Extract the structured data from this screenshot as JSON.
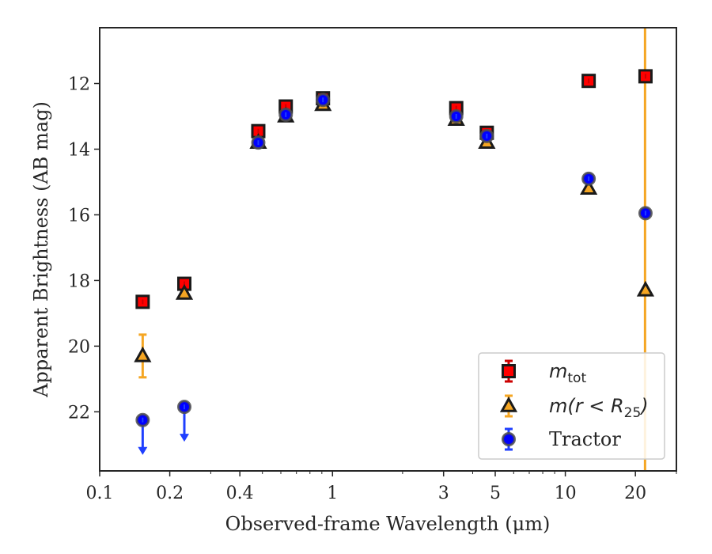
{
  "chart_data": {
    "type": "scatter",
    "xlabel": "Observed-frame Wavelength (μm)",
    "ylabel": "Apparent Brightness (AB mag)",
    "xscale": "log",
    "xlim": [
      0.1,
      30
    ],
    "ylim": [
      23.8,
      10.3
    ],
    "y_inverted": true,
    "x_ticks": [
      {
        "value": 0.1,
        "label": "0.1"
      },
      {
        "value": 0.2,
        "label": "0.2"
      },
      {
        "value": 0.4,
        "label": "0.4"
      },
      {
        "value": 1,
        "label": "1"
      },
      {
        "value": 3,
        "label": "3"
      },
      {
        "value": 5,
        "label": "5"
      },
      {
        "value": 10,
        "label": "10"
      },
      {
        "value": 20,
        "label": "20"
      }
    ],
    "y_ticks": [
      {
        "value": 12,
        "label": "12"
      },
      {
        "value": 14,
        "label": "14"
      },
      {
        "value": 16,
        "label": "16"
      },
      {
        "value": 18,
        "label": "18"
      },
      {
        "value": 20,
        "label": "20"
      },
      {
        "value": 22,
        "label": "22"
      }
    ],
    "vertical_line": {
      "x": 22.0,
      "color": "#f5a623"
    },
    "legend_position": "lower-right",
    "series": [
      {
        "name": "m_tot",
        "legend_main": "m",
        "legend_sub": "tot",
        "marker": "square",
        "fill": "#ff0000",
        "edge": "#1a1a1a",
        "errcolor": "#cc0000",
        "points": [
          {
            "x": 0.153,
            "y": 18.65
          },
          {
            "x": 0.231,
            "y": 18.1
          },
          {
            "x": 0.48,
            "y": 13.45
          },
          {
            "x": 0.63,
            "y": 12.7
          },
          {
            "x": 0.91,
            "y": 12.45
          },
          {
            "x": 3.4,
            "y": 12.75
          },
          {
            "x": 4.6,
            "y": 13.5
          },
          {
            "x": 12.6,
            "y": 11.92
          },
          {
            "x": 22.1,
            "y": 11.78
          }
        ]
      },
      {
        "name": "m(r < R_25)",
        "legend_main": "m(r < R",
        "legend_sub": "25",
        "legend_end": ")",
        "marker": "triangle",
        "fill": "#f5a623",
        "edge": "#1a1a1a",
        "errcolor": "#f5a623",
        "points": [
          {
            "x": 0.153,
            "y": 20.3,
            "err": 0.65
          },
          {
            "x": 0.231,
            "y": 18.4
          },
          {
            "x": 0.48,
            "y": 13.8
          },
          {
            "x": 0.63,
            "y": 13.0
          },
          {
            "x": 0.91,
            "y": 12.65
          },
          {
            "x": 3.4,
            "y": 13.1
          },
          {
            "x": 4.6,
            "y": 13.8
          },
          {
            "x": 12.6,
            "y": 15.2
          },
          {
            "x": 22.1,
            "y": 18.3
          }
        ]
      },
      {
        "name": "Tractor",
        "legend_main": "Tractor",
        "marker": "circle",
        "fill": "#0000ff",
        "edge": "#4d4d4d",
        "errcolor": "#1f3fff",
        "points": [
          {
            "x": 0.153,
            "y": 22.25,
            "upper_limit": true
          },
          {
            "x": 0.231,
            "y": 21.85,
            "upper_limit": true
          },
          {
            "x": 0.48,
            "y": 13.8
          },
          {
            "x": 0.63,
            "y": 12.95
          },
          {
            "x": 0.91,
            "y": 12.5
          },
          {
            "x": 3.4,
            "y": 13.0
          },
          {
            "x": 4.6,
            "y": 13.6
          },
          {
            "x": 12.6,
            "y": 14.9
          },
          {
            "x": 22.1,
            "y": 15.95
          }
        ]
      }
    ]
  }
}
